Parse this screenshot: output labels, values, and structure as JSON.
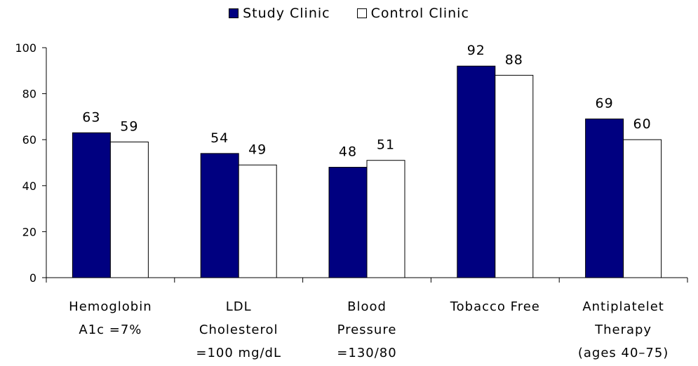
{
  "chart_data": {
    "type": "bar",
    "categories": [
      [
        "Hemoglobin",
        "A1c =7%"
      ],
      [
        "LDL",
        "Cholesterol",
        "=100 mg/dL"
      ],
      [
        "Blood",
        "Pressure",
        "=130/80"
      ],
      [
        "Tobacco Free"
      ],
      [
        "Antiplatelet",
        "Therapy",
        "(ages 40–75)"
      ]
    ],
    "series": [
      {
        "name": "Study Clinic",
        "values": [
          63,
          54,
          48,
          92,
          69
        ],
        "color": "#000080"
      },
      {
        "name": "Control Clinic",
        "values": [
          59,
          49,
          51,
          88,
          60
        ],
        "color": "#ffffff"
      }
    ],
    "ylim": [
      0,
      100
    ],
    "yticks": [
      0,
      20,
      40,
      60,
      80,
      100
    ],
    "grid": false,
    "legend": "top-center",
    "data_labels": true
  }
}
